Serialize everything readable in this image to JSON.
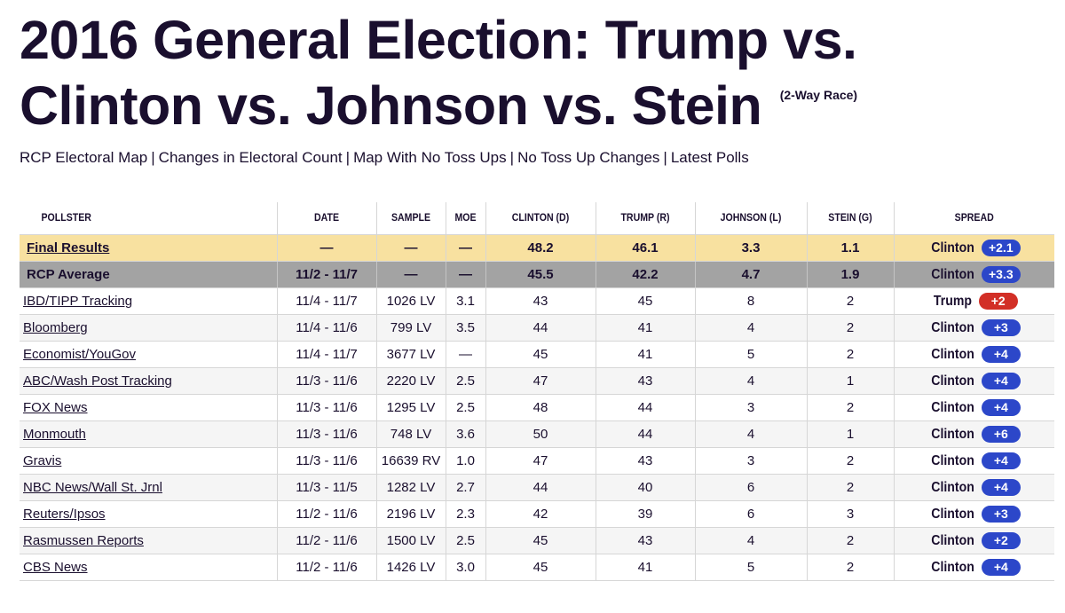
{
  "page": {
    "title": "2016 General Election: Trump vs. Clinton vs. Johnson vs. Stein",
    "subtitle": "(2-Way Race)"
  },
  "nav_links": [
    "RCP Electoral Map",
    "Changes in Electoral Count",
    "Map With No Toss Ups",
    "No Toss Up Changes",
    "Latest Polls"
  ],
  "nav_separator": "|",
  "table": {
    "headers": {
      "pollster": "POLLSTER",
      "date": "DATE",
      "sample": "SAMPLE",
      "moe": "MOE",
      "clinton": "CLINTON (D)",
      "trump": "TRUMP (R)",
      "johnson": "JOHNSON (L)",
      "stein": "STEIN (G)",
      "spread": "SPREAD"
    },
    "final": {
      "pollster": "Final Results",
      "date": "—",
      "sample": "—",
      "moe": "—",
      "clinton": "48.2",
      "trump": "46.1",
      "johnson": "3.3",
      "stein": "1.1",
      "spread_leader": "Clinton",
      "spread_value": "+2.1",
      "spread_party": "dem"
    },
    "average": {
      "pollster": "RCP Average",
      "date": "11/2 - 11/7",
      "sample": "—",
      "moe": "—",
      "clinton": "45.5",
      "trump": "42.2",
      "johnson": "4.7",
      "stein": "1.9",
      "spread_leader": "Clinton",
      "spread_value": "+3.3",
      "spread_party": "dem"
    },
    "polls": [
      {
        "pollster": "IBD/TIPP Tracking",
        "date": "11/4 - 11/7",
        "sample": "1026 LV",
        "moe": "3.1",
        "clinton": "43",
        "trump": "45",
        "johnson": "8",
        "stein": "2",
        "spread_leader": "Trump",
        "spread_value": "+2",
        "spread_party": "rep"
      },
      {
        "pollster": "Bloomberg",
        "date": "11/4 - 11/6",
        "sample": "799 LV",
        "moe": "3.5",
        "clinton": "44",
        "trump": "41",
        "johnson": "4",
        "stein": "2",
        "spread_leader": "Clinton",
        "spread_value": "+3",
        "spread_party": "dem"
      },
      {
        "pollster": "Economist/YouGov",
        "date": "11/4 - 11/7",
        "sample": "3677 LV",
        "moe": "—",
        "clinton": "45",
        "trump": "41",
        "johnson": "5",
        "stein": "2",
        "spread_leader": "Clinton",
        "spread_value": "+4",
        "spread_party": "dem"
      },
      {
        "pollster": "ABC/Wash Post Tracking",
        "date": "11/3 - 11/6",
        "sample": "2220 LV",
        "moe": "2.5",
        "clinton": "47",
        "trump": "43",
        "johnson": "4",
        "stein": "1",
        "spread_leader": "Clinton",
        "spread_value": "+4",
        "spread_party": "dem"
      },
      {
        "pollster": "FOX News",
        "date": "11/3 - 11/6",
        "sample": "1295 LV",
        "moe": "2.5",
        "clinton": "48",
        "trump": "44",
        "johnson": "3",
        "stein": "2",
        "spread_leader": "Clinton",
        "spread_value": "+4",
        "spread_party": "dem"
      },
      {
        "pollster": "Monmouth",
        "date": "11/3 - 11/6",
        "sample": "748 LV",
        "moe": "3.6",
        "clinton": "50",
        "trump": "44",
        "johnson": "4",
        "stein": "1",
        "spread_leader": "Clinton",
        "spread_value": "+6",
        "spread_party": "dem"
      },
      {
        "pollster": "Gravis",
        "date": "11/3 - 11/6",
        "sample": "16639 RV",
        "moe": "1.0",
        "clinton": "47",
        "trump": "43",
        "johnson": "3",
        "stein": "2",
        "spread_leader": "Clinton",
        "spread_value": "+4",
        "spread_party": "dem"
      },
      {
        "pollster": "NBC News/Wall St. Jrnl",
        "date": "11/3 - 11/5",
        "sample": "1282 LV",
        "moe": "2.7",
        "clinton": "44",
        "trump": "40",
        "johnson": "6",
        "stein": "2",
        "spread_leader": "Clinton",
        "spread_value": "+4",
        "spread_party": "dem"
      },
      {
        "pollster": "Reuters/Ipsos",
        "date": "11/2 - 11/6",
        "sample": "2196 LV",
        "moe": "2.3",
        "clinton": "42",
        "trump": "39",
        "johnson": "6",
        "stein": "3",
        "spread_leader": "Clinton",
        "spread_value": "+3",
        "spread_party": "dem"
      },
      {
        "pollster": "Rasmussen Reports",
        "date": "11/2 - 11/6",
        "sample": "1500 LV",
        "moe": "2.5",
        "clinton": "45",
        "trump": "43",
        "johnson": "4",
        "stein": "2",
        "spread_leader": "Clinton",
        "spread_value": "+2",
        "spread_party": "dem"
      },
      {
        "pollster": "CBS News",
        "date": "11/2 - 11/6",
        "sample": "1426 LV",
        "moe": "3.0",
        "clinton": "45",
        "trump": "41",
        "johnson": "5",
        "stein": "2",
        "spread_leader": "Clinton",
        "spread_value": "+4",
        "spread_party": "dem"
      }
    ]
  },
  "colors": {
    "dem_badge": "#2c47c9",
    "rep_badge": "#d22f26",
    "final_row": "#f8e1a0",
    "average_row": "#a3a3a3",
    "text": "#1a0f2e"
  }
}
